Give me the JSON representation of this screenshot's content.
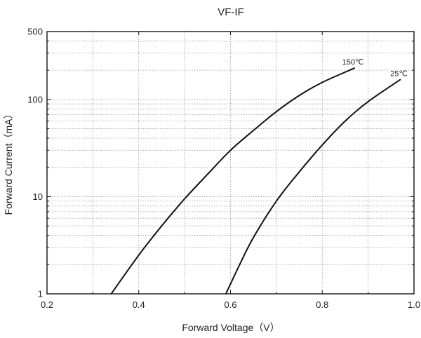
{
  "chart_data": {
    "type": "line",
    "title": "VF-IF",
    "xlabel": "Forward Voltage（V）",
    "ylabel": "Forward Current（mA）",
    "xlim": [
      0.2,
      1.0
    ],
    "ylim": [
      1,
      500
    ],
    "yscale": "log",
    "grid": true,
    "x_ticks": [
      0.2,
      0.4,
      0.6,
      0.8,
      1.0
    ],
    "x_tick_labels": [
      "0.2",
      "0.4",
      "0.6",
      "0.8",
      "1.0"
    ],
    "y_ticks": [
      1,
      10,
      100,
      500
    ],
    "y_tick_labels": [
      "1",
      "10",
      "100",
      "500"
    ],
    "series": [
      {
        "name": "150℃",
        "color": "#111111",
        "x": [
          0.34,
          0.4,
          0.45,
          0.5,
          0.55,
          0.6,
          0.65,
          0.7,
          0.75,
          0.8,
          0.87
        ],
        "y": [
          1.0,
          2.5,
          5.0,
          9.5,
          17,
          30,
          48,
          75,
          110,
          150,
          210
        ]
      },
      {
        "name": "25℃",
        "color": "#111111",
        "x": [
          0.59,
          0.62,
          0.65,
          0.7,
          0.75,
          0.8,
          0.85,
          0.9,
          0.97
        ],
        "y": [
          1.0,
          2.0,
          3.8,
          9.0,
          18,
          34,
          60,
          95,
          160
        ]
      }
    ]
  }
}
